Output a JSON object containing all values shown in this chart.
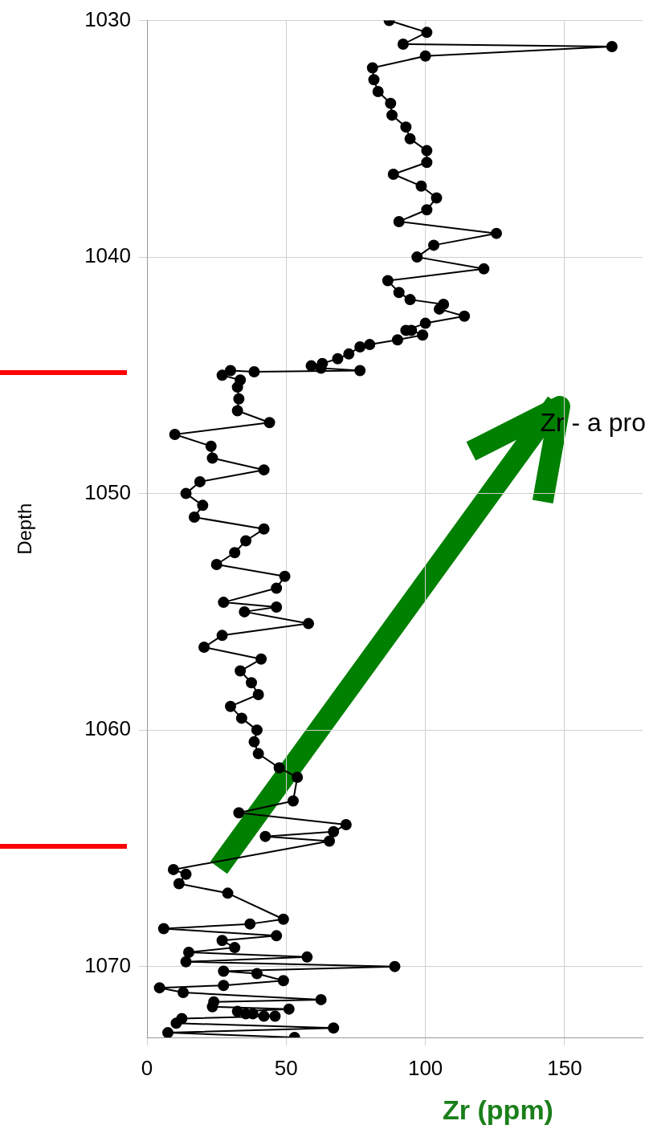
{
  "chart_data": {
    "type": "line",
    "xlabel": "Zr (ppm)",
    "ylabel": "Depth",
    "annotations": [
      "Zr - a pro"
    ],
    "xlim": [
      0,
      178
    ],
    "xticks": [
      0,
      50,
      100,
      150
    ],
    "ylim": [
      1073,
      1030
    ],
    "yticks": [
      1030,
      1040,
      1050,
      1060,
      1070
    ],
    "grid": true,
    "marker": "circle",
    "line_style": "solid",
    "legend": false,
    "series": [
      {
        "color": "#000000",
        "x": [
          87,
          100.5,
          92,
          167,
          100,
          81,
          81.5,
          83,
          87.5,
          88,
          93,
          94.5,
          100.5,
          100.5,
          88.5,
          98.5,
          104,
          100.5,
          90.5,
          125.5,
          103,
          97,
          121,
          86.5,
          90.5,
          94.5,
          106.5,
          105,
          114,
          100,
          93,
          95,
          99,
          90,
          80,
          76.5,
          72.5,
          68.5,
          63,
          59,
          62.5,
          76.5,
          38.5,
          30,
          27,
          33.5,
          32.5,
          33,
          32.5,
          44,
          10,
          23,
          23.5,
          42,
          19,
          14,
          20,
          17,
          42,
          35.5,
          31.5,
          25,
          49.5,
          46.5,
          27.5,
          46.5,
          35,
          58,
          27,
          20.5,
          41,
          33.5,
          37.5,
          40,
          30,
          34,
          39.5,
          38.5,
          40,
          47.5,
          54,
          52.5,
          33,
          71.5,
          67,
          42.5,
          65.5,
          9.5,
          14,
          11.5,
          29,
          49,
          37,
          6,
          46.5,
          27,
          31.5,
          15,
          57.5,
          14,
          89,
          27.5,
          39.5,
          49,
          27.5,
          4.5,
          13,
          62.5,
          24,
          23.5,
          51,
          32.5,
          35.5,
          38,
          42,
          46,
          12.5,
          10.5,
          67,
          7.5,
          53
        ],
        "values": [
          1030,
          1030.5,
          1031,
          1031.1,
          1031.5,
          1032,
          1032.5,
          1033,
          1033.5,
          1034,
          1034.5,
          1035,
          1035.5,
          1036,
          1036.5,
          1037,
          1037.5,
          1038,
          1038.5,
          1039,
          1039.5,
          1040,
          1040.5,
          1041,
          1041.5,
          1041.8,
          1042,
          1042.2,
          1042.5,
          1042.8,
          1043.1,
          1043.1,
          1043.3,
          1043.5,
          1043.7,
          1043.8,
          1044.1,
          1044.3,
          1044.5,
          1044.6,
          1044.7,
          1044.8,
          1044.85,
          1044.8,
          1045,
          1045.2,
          1045.5,
          1046,
          1046.5,
          1047,
          1047.5,
          1048,
          1048.5,
          1049,
          1049.5,
          1050,
          1050.5,
          1051,
          1051.5,
          1052,
          1052.5,
          1053,
          1053.5,
          1054,
          1054.6,
          1054.8,
          1055,
          1055.5,
          1056,
          1056.5,
          1057,
          1057.5,
          1058,
          1058.5,
          1059,
          1059.5,
          1060,
          1060.5,
          1061,
          1061.6,
          1062,
          1063,
          1063.5,
          1064,
          1064.3,
          1064.5,
          1064.7,
          1065.9,
          1066.1,
          1066.5,
          1066.9,
          1068,
          1068.2,
          1068.4,
          1068.7,
          1068.9,
          1069.2,
          1069.4,
          1069.6,
          1069.8,
          1070,
          1070.2,
          1070.3,
          1070.6,
          1070.8,
          1070.9,
          1071.1,
          1071.4,
          1071.5,
          1071.7,
          1071.8,
          1071.9,
          1072,
          1072,
          1072.1,
          1072.1,
          1072.2,
          1072.4,
          1072.6,
          1072.8,
          1073
        ]
      }
    ]
  }
}
